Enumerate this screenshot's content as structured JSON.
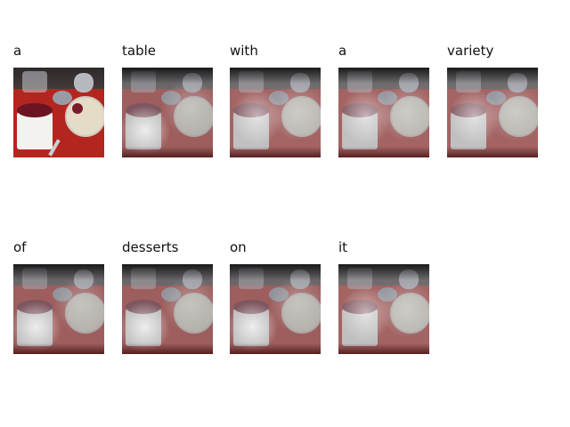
{
  "words": [
    "a",
    "table",
    "with",
    "a",
    "variety",
    "of",
    "desserts",
    "on",
    "it"
  ],
  "thumb_types": [
    "original",
    "attention",
    "attention",
    "attention",
    "attention",
    "attention",
    "attention",
    "attention",
    "attention"
  ],
  "icons": {
    "thumbnail": "photo-thumbnail",
    "attention": "attention-map"
  }
}
